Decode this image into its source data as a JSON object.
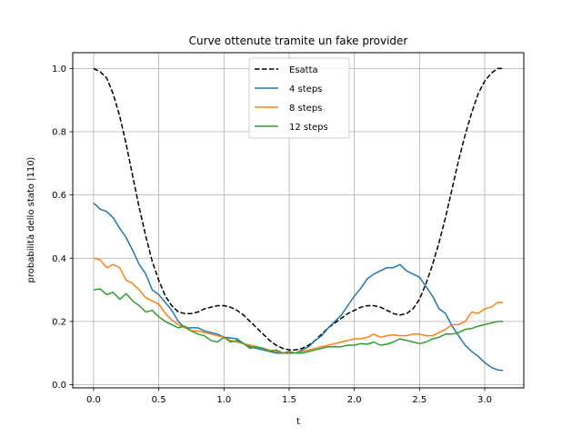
{
  "chart_data": {
    "type": "line",
    "title": "Curve ottenute tramite un fake provider",
    "xlabel": "t",
    "ylabel": "probabilità dello stato |110⟩",
    "xlim": [
      -0.16,
      3.3
    ],
    "ylim": [
      -0.01,
      1.05
    ],
    "xticks": [
      0.0,
      0.5,
      1.0,
      1.5,
      2.0,
      2.5,
      3.0
    ],
    "xtick_labels": [
      "0.0",
      "0.5",
      "1.0",
      "1.5",
      "2.0",
      "2.5",
      "3.0"
    ],
    "yticks": [
      0.0,
      0.2,
      0.4,
      0.6,
      0.8,
      1.0
    ],
    "ytick_labels": [
      "0.0",
      "0.2",
      "0.4",
      "0.6",
      "0.8",
      "1.0"
    ],
    "grid": true,
    "legend": "top-center",
    "series": [
      {
        "name": "Esatta",
        "color": "#000000",
        "style": "dashed",
        "x": [
          0.0,
          0.05,
          0.1,
          0.15,
          0.2,
          0.25,
          0.3,
          0.35,
          0.4,
          0.45,
          0.5,
          0.55,
          0.6,
          0.65,
          0.7,
          0.75,
          0.8,
          0.85,
          0.9,
          0.95,
          1.0,
          1.05,
          1.1,
          1.15,
          1.2,
          1.25,
          1.3,
          1.35,
          1.4,
          1.45,
          1.5,
          1.55,
          1.6,
          1.65,
          1.7,
          1.75,
          1.8,
          1.85,
          1.9,
          1.95,
          2.0,
          2.05,
          2.1,
          2.15,
          2.2,
          2.25,
          2.3,
          2.35,
          2.4,
          2.45,
          2.5,
          2.55,
          2.6,
          2.65,
          2.7,
          2.75,
          2.8,
          2.85,
          2.9,
          2.95,
          3.0,
          3.05,
          3.1,
          3.14
        ],
        "y": [
          1.0,
          0.99,
          0.97,
          0.92,
          0.85,
          0.76,
          0.66,
          0.56,
          0.47,
          0.39,
          0.33,
          0.28,
          0.25,
          0.23,
          0.225,
          0.225,
          0.23,
          0.24,
          0.245,
          0.25,
          0.25,
          0.245,
          0.235,
          0.22,
          0.2,
          0.18,
          0.16,
          0.14,
          0.125,
          0.115,
          0.11,
          0.11,
          0.115,
          0.125,
          0.14,
          0.16,
          0.18,
          0.195,
          0.21,
          0.225,
          0.235,
          0.245,
          0.25,
          0.25,
          0.245,
          0.235,
          0.225,
          0.22,
          0.225,
          0.24,
          0.27,
          0.32,
          0.38,
          0.45,
          0.53,
          0.62,
          0.71,
          0.79,
          0.86,
          0.92,
          0.96,
          0.985,
          1.0,
          1.0
        ]
      },
      {
        "name": "4 steps",
        "color": "#1f77b4",
        "style": "solid",
        "x": [
          0.0,
          0.05,
          0.1,
          0.15,
          0.2,
          0.25,
          0.3,
          0.35,
          0.4,
          0.45,
          0.5,
          0.55,
          0.6,
          0.65,
          0.7,
          0.75,
          0.8,
          0.85,
          0.9,
          0.95,
          1.0,
          1.05,
          1.1,
          1.15,
          1.2,
          1.25,
          1.3,
          1.35,
          1.4,
          1.45,
          1.5,
          1.55,
          1.6,
          1.65,
          1.7,
          1.75,
          1.8,
          1.85,
          1.9,
          1.95,
          2.0,
          2.05,
          2.1,
          2.15,
          2.2,
          2.25,
          2.3,
          2.35,
          2.4,
          2.45,
          2.5,
          2.55,
          2.6,
          2.65,
          2.7,
          2.75,
          2.8,
          2.85,
          2.9,
          2.95,
          3.0,
          3.05,
          3.1,
          3.14
        ],
        "y": [
          0.575,
          0.555,
          0.548,
          0.528,
          0.495,
          0.465,
          0.425,
          0.38,
          0.35,
          0.3,
          0.285,
          0.26,
          0.235,
          0.2,
          0.18,
          0.18,
          0.18,
          0.17,
          0.165,
          0.16,
          0.15,
          0.148,
          0.145,
          0.13,
          0.12,
          0.115,
          0.11,
          0.105,
          0.1,
          0.1,
          0.1,
          0.1,
          0.11,
          0.12,
          0.14,
          0.155,
          0.18,
          0.2,
          0.22,
          0.25,
          0.28,
          0.305,
          0.335,
          0.35,
          0.36,
          0.37,
          0.37,
          0.38,
          0.36,
          0.35,
          0.34,
          0.31,
          0.28,
          0.24,
          0.225,
          0.185,
          0.155,
          0.125,
          0.105,
          0.09,
          0.07,
          0.055,
          0.047,
          0.045
        ]
      },
      {
        "name": "8 steps",
        "color": "#ff7f0e",
        "style": "solid",
        "x": [
          0.0,
          0.05,
          0.1,
          0.15,
          0.2,
          0.25,
          0.3,
          0.35,
          0.4,
          0.45,
          0.5,
          0.55,
          0.6,
          0.65,
          0.7,
          0.75,
          0.8,
          0.85,
          0.9,
          0.95,
          1.0,
          1.05,
          1.1,
          1.15,
          1.2,
          1.25,
          1.3,
          1.35,
          1.4,
          1.45,
          1.5,
          1.55,
          1.6,
          1.65,
          1.7,
          1.75,
          1.8,
          1.85,
          1.9,
          1.95,
          2.0,
          2.05,
          2.1,
          2.15,
          2.2,
          2.25,
          2.3,
          2.35,
          2.4,
          2.45,
          2.5,
          2.55,
          2.6,
          2.65,
          2.7,
          2.75,
          2.8,
          2.85,
          2.9,
          2.95,
          3.0,
          3.05,
          3.1,
          3.14
        ],
        "y": [
          0.4,
          0.395,
          0.37,
          0.38,
          0.37,
          0.33,
          0.32,
          0.3,
          0.275,
          0.265,
          0.255,
          0.225,
          0.205,
          0.19,
          0.18,
          0.17,
          0.17,
          0.165,
          0.16,
          0.155,
          0.15,
          0.14,
          0.135,
          0.13,
          0.125,
          0.12,
          0.115,
          0.11,
          0.105,
          0.1,
          0.098,
          0.1,
          0.105,
          0.11,
          0.115,
          0.12,
          0.125,
          0.13,
          0.135,
          0.14,
          0.145,
          0.145,
          0.15,
          0.16,
          0.15,
          0.155,
          0.158,
          0.155,
          0.155,
          0.16,
          0.16,
          0.155,
          0.155,
          0.165,
          0.175,
          0.19,
          0.19,
          0.2,
          0.23,
          0.225,
          0.24,
          0.245,
          0.26,
          0.26
        ]
      },
      {
        "name": "12 steps",
        "color": "#2ca02c",
        "style": "solid",
        "x": [
          0.0,
          0.05,
          0.1,
          0.15,
          0.2,
          0.25,
          0.3,
          0.35,
          0.4,
          0.45,
          0.5,
          0.55,
          0.6,
          0.65,
          0.7,
          0.75,
          0.8,
          0.85,
          0.9,
          0.95,
          1.0,
          1.05,
          1.1,
          1.15,
          1.2,
          1.25,
          1.3,
          1.35,
          1.4,
          1.45,
          1.5,
          1.55,
          1.6,
          1.65,
          1.7,
          1.75,
          1.8,
          1.85,
          1.9,
          1.95,
          2.0,
          2.05,
          2.1,
          2.15,
          2.2,
          2.25,
          2.3,
          2.35,
          2.4,
          2.45,
          2.5,
          2.55,
          2.6,
          2.65,
          2.7,
          2.75,
          2.8,
          2.85,
          2.9,
          2.95,
          3.0,
          3.05,
          3.1,
          3.14
        ],
        "y": [
          0.3,
          0.303,
          0.285,
          0.292,
          0.27,
          0.288,
          0.265,
          0.25,
          0.23,
          0.235,
          0.215,
          0.2,
          0.19,
          0.18,
          0.185,
          0.17,
          0.16,
          0.155,
          0.14,
          0.135,
          0.15,
          0.135,
          0.14,
          0.13,
          0.115,
          0.12,
          0.115,
          0.105,
          0.11,
          0.1,
          0.105,
          0.1,
          0.1,
          0.105,
          0.11,
          0.115,
          0.12,
          0.12,
          0.12,
          0.125,
          0.125,
          0.13,
          0.128,
          0.135,
          0.125,
          0.128,
          0.135,
          0.145,
          0.14,
          0.135,
          0.13,
          0.135,
          0.145,
          0.15,
          0.16,
          0.16,
          0.165,
          0.175,
          0.178,
          0.185,
          0.19,
          0.195,
          0.2,
          0.2
        ]
      }
    ]
  }
}
